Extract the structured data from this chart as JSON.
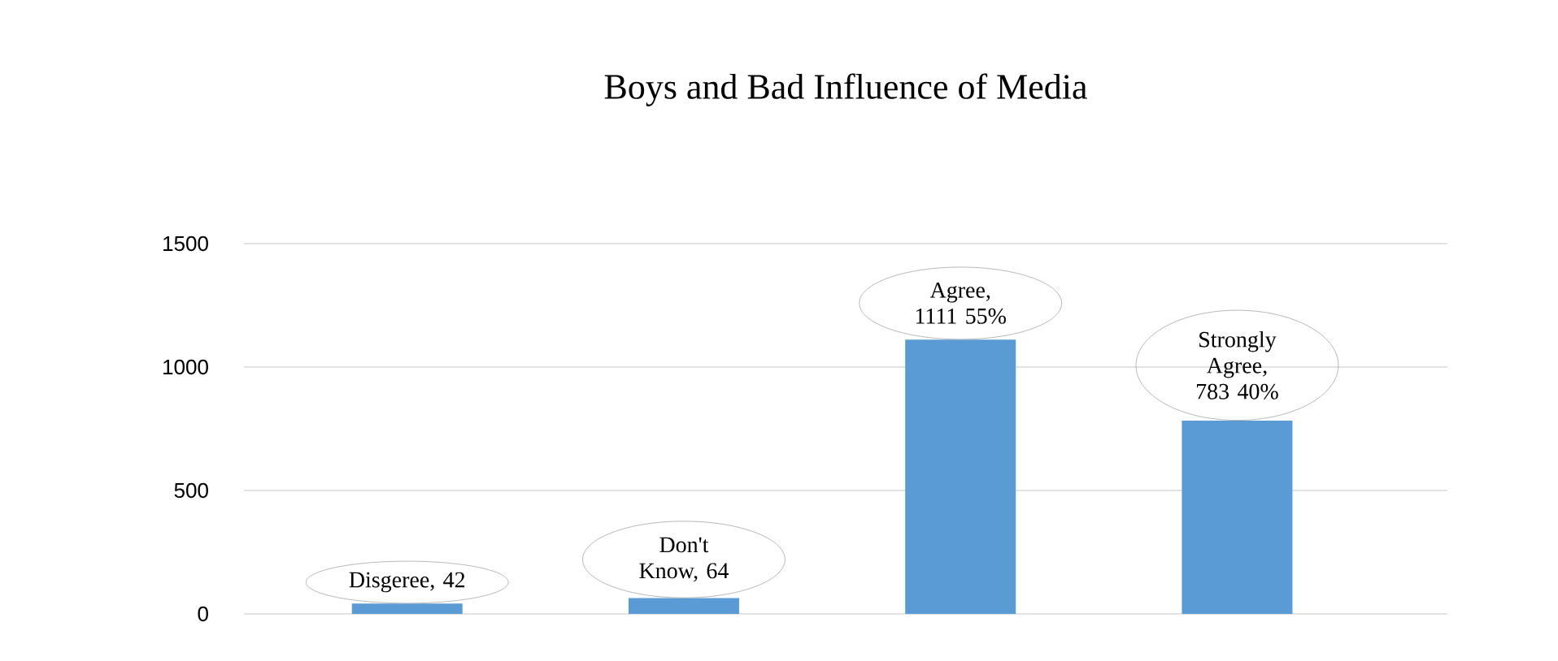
{
  "chart_data": {
    "type": "bar",
    "title": "Boys and Bad Influence of Media",
    "categories": [
      null,
      null,
      null,
      null
    ],
    "values": [
      42,
      64,
      1111,
      783
    ],
    "value_labels": [
      "Disgeree, 42",
      "Don't Know, 64",
      "Agree, 1111 55%",
      "Strongly Agree, 783 40%"
    ],
    "color": "#5b9bd5",
    "ylim": [
      0,
      1500
    ],
    "yticks": [
      0,
      500,
      1000,
      1500
    ],
    "grid": "y"
  }
}
